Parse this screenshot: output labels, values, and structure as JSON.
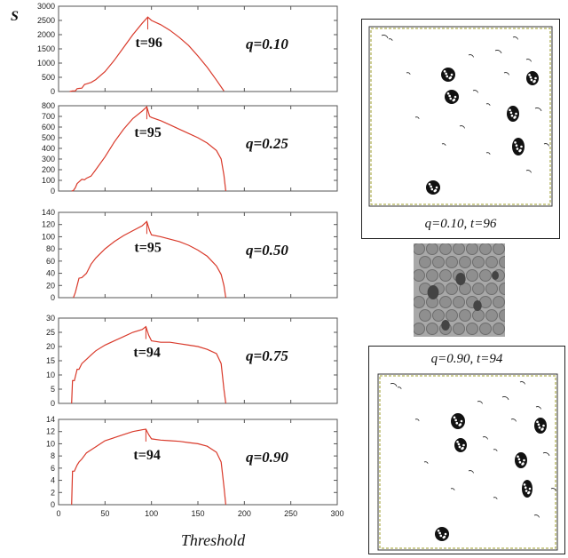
{
  "y_axis_label": "S",
  "x_axis_label": "Threshold",
  "chart_data": [
    {
      "type": "line",
      "color": "#d93a2b",
      "ylim": [
        0,
        3000
      ],
      "yticks": [
        0,
        500,
        1000,
        1500,
        2000,
        2500,
        3000
      ],
      "xlim": [
        0,
        300
      ],
      "peak_label": "t=96",
      "q_label": "q=0.10",
      "x": [
        12,
        15,
        18,
        20,
        22,
        25,
        28,
        30,
        33,
        35,
        40,
        50,
        60,
        70,
        80,
        90,
        96,
        100,
        110,
        120,
        130,
        140,
        150,
        160,
        170,
        178
      ],
      "y": [
        0,
        20,
        20,
        100,
        110,
        120,
        250,
        270,
        300,
        320,
        420,
        700,
        1100,
        1550,
        2000,
        2400,
        2620,
        2500,
        2350,
        2150,
        1900,
        1620,
        1250,
        850,
        400,
        20
      ]
    },
    {
      "type": "line",
      "color": "#d93a2b",
      "ylim": [
        0,
        800
      ],
      "yticks": [
        0,
        100,
        200,
        300,
        400,
        500,
        600,
        700,
        800
      ],
      "xlim": [
        0,
        300
      ],
      "peak_label": "t=95",
      "q_label": "q=0.25",
      "x": [
        14,
        16,
        18,
        20,
        25,
        28,
        30,
        35,
        40,
        50,
        60,
        70,
        80,
        90,
        95,
        98,
        100,
        110,
        120,
        130,
        140,
        150,
        160,
        170,
        175,
        178,
        180
      ],
      "y": [
        0,
        5,
        30,
        70,
        110,
        105,
        120,
        140,
        200,
        320,
        460,
        580,
        680,
        750,
        790,
        700,
        690,
        660,
        620,
        580,
        540,
        500,
        450,
        380,
        300,
        150,
        0
      ]
    },
    {
      "type": "line",
      "color": "#d93a2b",
      "ylim": [
        0,
        140
      ],
      "yticks": [
        0,
        20,
        40,
        60,
        80,
        100,
        120,
        140
      ],
      "xlim": [
        0,
        300
      ],
      "peak_label": "t=95",
      "q_label": "q=0.50",
      "x": [
        16,
        18,
        20,
        22,
        25,
        30,
        35,
        40,
        50,
        60,
        70,
        80,
        90,
        95,
        98,
        100,
        110,
        120,
        130,
        140,
        150,
        160,
        170,
        175,
        178,
        180
      ],
      "y": [
        0,
        8,
        20,
        32,
        33,
        40,
        55,
        65,
        80,
        92,
        102,
        110,
        118,
        125,
        110,
        103,
        100,
        96,
        92,
        86,
        78,
        68,
        52,
        38,
        20,
        0
      ]
    },
    {
      "type": "line",
      "color": "#d93a2b",
      "ylim": [
        0,
        30
      ],
      "yticks": [
        0,
        5,
        10,
        15,
        20,
        25,
        30
      ],
      "xlim": [
        0,
        300
      ],
      "peak_label": "t=94",
      "q_label": "q=0.75",
      "x": [
        14,
        15,
        17,
        20,
        22,
        25,
        30,
        35,
        40,
        50,
        60,
        70,
        80,
        90,
        94,
        97,
        100,
        110,
        120,
        130,
        140,
        150,
        160,
        170,
        175,
        178,
        180
      ],
      "y": [
        0,
        8,
        8,
        12,
        12,
        14,
        15.5,
        17,
        18.5,
        20.5,
        22,
        23.5,
        25,
        26,
        27,
        24,
        22,
        21.5,
        21.5,
        21,
        20.5,
        20,
        19,
        17.5,
        14,
        5,
        0
      ]
    },
    {
      "type": "line",
      "color": "#d93a2b",
      "ylim": [
        0,
        14
      ],
      "yticks": [
        0,
        2,
        4,
        6,
        8,
        10,
        12,
        14
      ],
      "xlim": [
        0,
        300
      ],
      "xticks": [
        0,
        50,
        100,
        150,
        200,
        250,
        300
      ],
      "peak_label": "t=94",
      "q_label": "q=0.90",
      "x": [
        14,
        15,
        17,
        20,
        22,
        25,
        30,
        40,
        50,
        60,
        70,
        80,
        90,
        94,
        97,
        100,
        110,
        120,
        130,
        140,
        150,
        160,
        170,
        175,
        178,
        180
      ],
      "y": [
        0,
        5.5,
        5.5,
        6.5,
        7,
        7.5,
        8.5,
        9.5,
        10.5,
        11,
        11.5,
        12,
        12.3,
        12.4,
        11.5,
        10.8,
        10.6,
        10.5,
        10.4,
        10.2,
        10,
        9.6,
        8.6,
        7,
        3,
        0
      ]
    }
  ],
  "panels": {
    "top_label": "q=0.10, t=96",
    "bottom_label": "q=0.90, t=94"
  }
}
